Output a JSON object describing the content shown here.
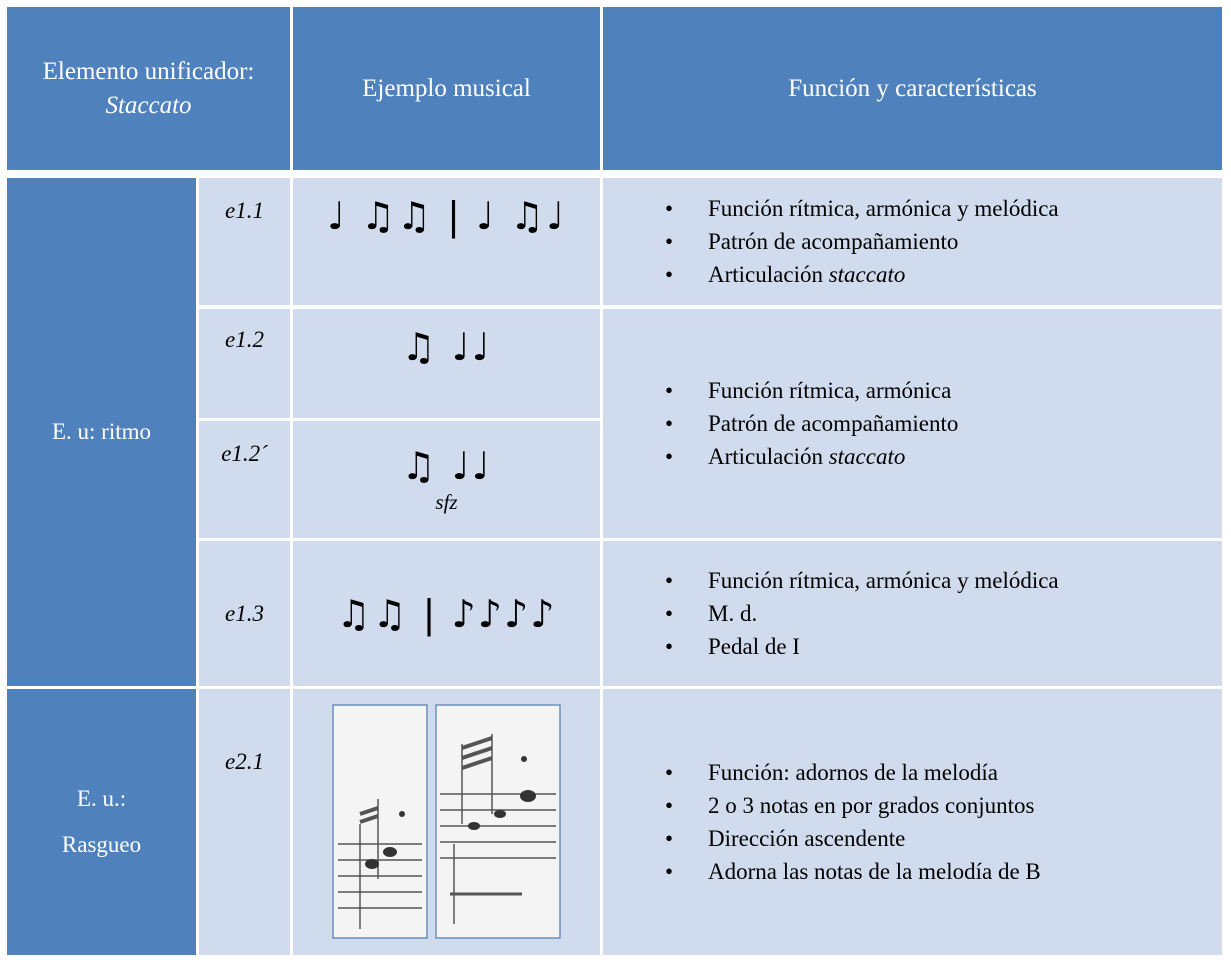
{
  "header": {
    "group": {
      "text": "Elemento unificador:",
      "em": "Staccato"
    },
    "example": "Ejemplo musical",
    "function": "Función y características"
  },
  "groups": [
    {
      "lines": [
        "E. u: ritmo"
      ]
    },
    {
      "lines": [
        "E. u.:",
        "Rasgueo"
      ]
    }
  ],
  "rows": [
    {
      "id": "e1.1",
      "notation": "♩ ♫♫ | ♩ ♫♩"
    },
    {
      "id": "e1.2",
      "notation": "♫ ♩♩"
    },
    {
      "id": "e1.2´",
      "notation": "♫ ♩♩",
      "dynamic": "sfz"
    },
    {
      "id": "e1.3",
      "notation": "♫♫ | ♪♪♪♪"
    },
    {
      "id": "e2.1"
    }
  ],
  "functions": [
    [
      "Función rítmica, armónica y melódica",
      "Patrón de acompañamiento",
      {
        "text": "Articulación",
        "em": "staccato"
      }
    ],
    [
      "Función rítmica, armónica",
      "Patrón de acompañamiento",
      {
        "text": "Articulación",
        "em": "staccato"
      }
    ],
    [
      "Función rítmica, armónica y melódica",
      "M. d.",
      "Pedal de I"
    ],
    [
      "Función: adornos de la melodía",
      "2 o 3 notas en por grados conjuntos",
      "Dirección ascendente",
      "Adorna las notas de la melodía de B"
    ]
  ]
}
